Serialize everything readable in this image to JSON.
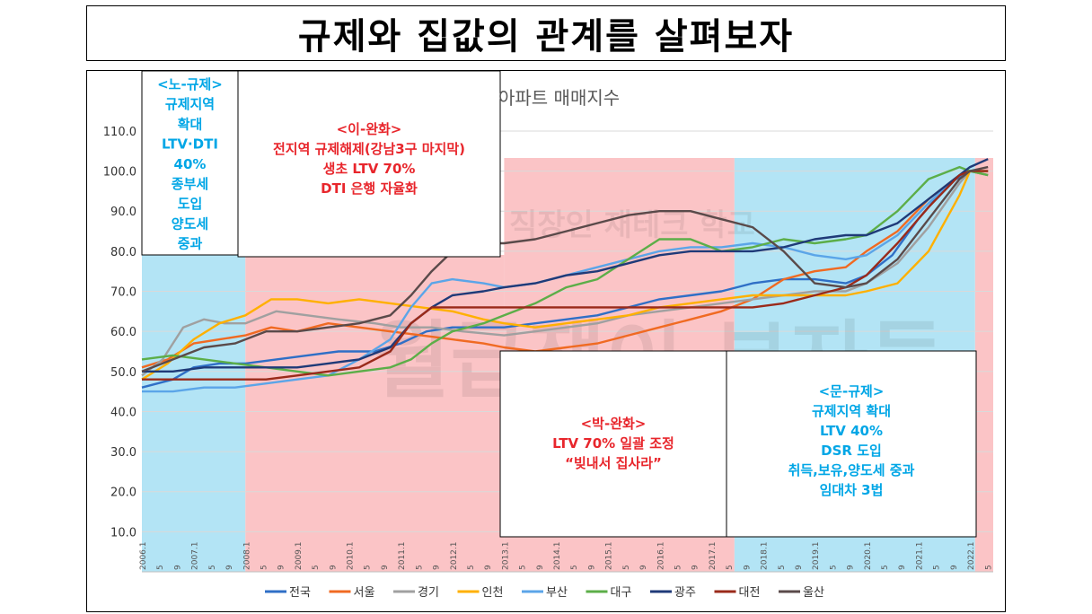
{
  "page_title": "규제와 집값의 관계를 살펴보자",
  "watermark": {
    "line1": "월급쟁이 부자들",
    "line2": "직장인 재테크 학교"
  },
  "colors": {
    "blue_bg": "#b3e4f5",
    "red_bg": "#fbc4c6",
    "blue_text": "#00a6e6",
    "red_text": "#e8262c"
  },
  "periods": [
    {
      "name": "노-규제",
      "color": "blue",
      "start": "2006.1",
      "end": "2007.12",
      "lines": [
        "<노-규제>",
        "규제지역",
        "확대",
        "LTV·DTI",
        "40%",
        "종부세",
        "도입",
        "양도세",
        "중과"
      ]
    },
    {
      "name": "이-완화",
      "color": "red",
      "start": "2008.1",
      "end": "2012.12",
      "lines": [
        "<이-완화>",
        "전지역 규제해제(강남3구 마지막)",
        "생초 LTV 70%",
        "DTI 은행 자율화"
      ]
    },
    {
      "name": "박-완화",
      "color": "red",
      "start": "2013.1",
      "end": "2017.5",
      "lines": [
        "<박-완화>",
        "LTV 70% 일괄 조정",
        "“빚내서 집사라”"
      ]
    },
    {
      "name": "문-규제",
      "color": "blue",
      "start": "2017.6",
      "end": "2022.4",
      "lines": [
        "<문-규제>",
        "규제지역 확대",
        "LTV 40%",
        "DSR 도입",
        "취득,보유,양도세 중과",
        "임대차 3법"
      ]
    }
  ],
  "chart_data": {
    "type": "line",
    "title": "아파트 매매지수",
    "y_ticks": [
      "10.0",
      "20.0",
      "30.0",
      "40.0",
      "50.0",
      "60.0",
      "70.0",
      "80.0",
      "90.0",
      "100.0",
      "110.0"
    ],
    "ylim": [
      10,
      110
    ],
    "x_axis_labels": [
      "2006.1",
      "5",
      "9",
      "2007.1",
      "5",
      "9",
      "2008.1",
      "5",
      "9",
      "2009.1",
      "5",
      "9",
      "2010.1",
      "5",
      "9",
      "2011.1",
      "5",
      "9",
      "2012.1",
      "5",
      "9",
      "2013.1",
      "5",
      "9",
      "2014.1",
      "5",
      "9",
      "2015.1",
      "5",
      "9",
      "2016.1",
      "5",
      "9",
      "2017.1",
      "5",
      "9",
      "2018.1",
      "5",
      "9",
      "2019.1",
      "5",
      "9",
      "2020.1",
      "5",
      "9",
      "2021.1",
      "5",
      "9",
      "2022.1",
      "5"
    ],
    "legend_position": "bottom",
    "series": [
      {
        "name": "전국",
        "color": "#2f6fc6",
        "points": [
          [
            2006.0,
            46
          ],
          [
            2006.6,
            48
          ],
          [
            2007.0,
            51
          ],
          [
            2007.5,
            52
          ],
          [
            2008.0,
            52
          ],
          [
            2008.6,
            53
          ],
          [
            2009.2,
            54
          ],
          [
            2009.8,
            55
          ],
          [
            2010.5,
            55
          ],
          [
            2011.0,
            57
          ],
          [
            2011.5,
            60
          ],
          [
            2012.0,
            61
          ],
          [
            2012.6,
            61
          ],
          [
            2013.0,
            61
          ],
          [
            2013.6,
            62
          ],
          [
            2014.2,
            63
          ],
          [
            2014.8,
            64
          ],
          [
            2015.4,
            66
          ],
          [
            2016.0,
            68
          ],
          [
            2016.6,
            69
          ],
          [
            2017.2,
            70
          ],
          [
            2017.8,
            72
          ],
          [
            2018.4,
            73
          ],
          [
            2019.0,
            73
          ],
          [
            2019.6,
            72
          ],
          [
            2020.0,
            74
          ],
          [
            2020.5,
            79
          ],
          [
            2021.0,
            88
          ],
          [
            2021.6,
            97
          ],
          [
            2022.0,
            100
          ],
          [
            2022.35,
            100
          ]
        ]
      },
      {
        "name": "서울",
        "color": "#f06a22",
        "points": [
          [
            2006.0,
            51
          ],
          [
            2006.5,
            53
          ],
          [
            2007.0,
            57
          ],
          [
            2007.5,
            58
          ],
          [
            2008.0,
            59
          ],
          [
            2008.5,
            61
          ],
          [
            2009.0,
            60
          ],
          [
            2009.6,
            62
          ],
          [
            2010.2,
            61
          ],
          [
            2010.8,
            60
          ],
          [
            2011.4,
            59
          ],
          [
            2012.0,
            58
          ],
          [
            2012.6,
            57
          ],
          [
            2013.0,
            56
          ],
          [
            2013.6,
            55
          ],
          [
            2014.2,
            56
          ],
          [
            2014.8,
            57
          ],
          [
            2015.4,
            59
          ],
          [
            2016.0,
            61
          ],
          [
            2016.6,
            63
          ],
          [
            2017.2,
            65
          ],
          [
            2017.8,
            68
          ],
          [
            2018.4,
            73
          ],
          [
            2019.0,
            75
          ],
          [
            2019.6,
            76
          ],
          [
            2020.0,
            80
          ],
          [
            2020.6,
            85
          ],
          [
            2021.2,
            93
          ],
          [
            2021.8,
            99
          ],
          [
            2022.0,
            100
          ],
          [
            2022.35,
            99
          ]
        ]
      },
      {
        "name": "경기",
        "color": "#a0a0a0",
        "points": [
          [
            2006.0,
            49
          ],
          [
            2006.4,
            53
          ],
          [
            2006.8,
            61
          ],
          [
            2007.2,
            63
          ],
          [
            2007.6,
            62
          ],
          [
            2008.0,
            62
          ],
          [
            2008.6,
            65
          ],
          [
            2009.2,
            64
          ],
          [
            2009.8,
            63
          ],
          [
            2010.5,
            62
          ],
          [
            2011.0,
            61
          ],
          [
            2011.6,
            61
          ],
          [
            2012.2,
            60
          ],
          [
            2013.0,
            59
          ],
          [
            2013.6,
            60
          ],
          [
            2014.2,
            61
          ],
          [
            2014.8,
            62
          ],
          [
            2015.4,
            64
          ],
          [
            2016.0,
            65
          ],
          [
            2016.6,
            66
          ],
          [
            2017.2,
            67
          ],
          [
            2017.8,
            68
          ],
          [
            2018.4,
            69
          ],
          [
            2019.0,
            70
          ],
          [
            2019.6,
            70
          ],
          [
            2020.0,
            72
          ],
          [
            2020.6,
            77
          ],
          [
            2021.2,
            86
          ],
          [
            2021.8,
            97
          ],
          [
            2022.0,
            100
          ],
          [
            2022.35,
            100
          ]
        ]
      },
      {
        "name": "인천",
        "color": "#ffb000",
        "points": [
          [
            2006.0,
            48
          ],
          [
            2006.5,
            52
          ],
          [
            2007.0,
            58
          ],
          [
            2007.5,
            62
          ],
          [
            2008.0,
            64
          ],
          [
            2008.5,
            68
          ],
          [
            2009.0,
            68
          ],
          [
            2009.6,
            67
          ],
          [
            2010.2,
            68
          ],
          [
            2010.8,
            67
          ],
          [
            2011.4,
            66
          ],
          [
            2012.0,
            65
          ],
          [
            2012.6,
            63
          ],
          [
            2013.0,
            62
          ],
          [
            2013.6,
            61
          ],
          [
            2014.2,
            62
          ],
          [
            2014.8,
            63
          ],
          [
            2015.4,
            64
          ],
          [
            2016.0,
            66
          ],
          [
            2016.6,
            67
          ],
          [
            2017.2,
            68
          ],
          [
            2017.8,
            69
          ],
          [
            2018.4,
            69
          ],
          [
            2019.0,
            69
          ],
          [
            2019.6,
            69
          ],
          [
            2020.0,
            70
          ],
          [
            2020.6,
            72
          ],
          [
            2021.2,
            80
          ],
          [
            2021.8,
            94
          ],
          [
            2022.0,
            100
          ],
          [
            2022.35,
            100
          ]
        ]
      },
      {
        "name": "부산",
        "color": "#5ba5e8",
        "points": [
          [
            2006.0,
            45
          ],
          [
            2006.6,
            45
          ],
          [
            2007.2,
            46
          ],
          [
            2007.8,
            46
          ],
          [
            2008.4,
            47
          ],
          [
            2009.0,
            48
          ],
          [
            2009.6,
            49
          ],
          [
            2010.2,
            53
          ],
          [
            2010.8,
            58
          ],
          [
            2011.2,
            66
          ],
          [
            2011.6,
            72
          ],
          [
            2012.0,
            73
          ],
          [
            2012.6,
            72
          ],
          [
            2013.0,
            71
          ],
          [
            2013.6,
            72
          ],
          [
            2014.2,
            74
          ],
          [
            2014.8,
            76
          ],
          [
            2015.4,
            78
          ],
          [
            2016.0,
            80
          ],
          [
            2016.6,
            81
          ],
          [
            2017.2,
            81
          ],
          [
            2017.8,
            82
          ],
          [
            2018.4,
            81
          ],
          [
            2019.0,
            79
          ],
          [
            2019.6,
            78
          ],
          [
            2020.0,
            79
          ],
          [
            2020.6,
            84
          ],
          [
            2021.2,
            92
          ],
          [
            2021.8,
            99
          ],
          [
            2022.0,
            100
          ],
          [
            2022.35,
            99
          ]
        ]
      },
      {
        "name": "대구",
        "color": "#5cae48",
        "points": [
          [
            2006.0,
            53
          ],
          [
            2006.6,
            54
          ],
          [
            2007.2,
            53
          ],
          [
            2007.8,
            52
          ],
          [
            2008.4,
            51
          ],
          [
            2009.0,
            50
          ],
          [
            2009.6,
            49
          ],
          [
            2010.2,
            50
          ],
          [
            2010.8,
            51
          ],
          [
            2011.2,
            53
          ],
          [
            2011.6,
            57
          ],
          [
            2012.0,
            60
          ],
          [
            2012.6,
            62
          ],
          [
            2013.0,
            64
          ],
          [
            2013.6,
            67
          ],
          [
            2014.2,
            71
          ],
          [
            2014.8,
            73
          ],
          [
            2015.4,
            78
          ],
          [
            2016.0,
            83
          ],
          [
            2016.6,
            83
          ],
          [
            2017.2,
            80
          ],
          [
            2017.8,
            81
          ],
          [
            2018.4,
            83
          ],
          [
            2019.0,
            82
          ],
          [
            2019.6,
            83
          ],
          [
            2020.0,
            84
          ],
          [
            2020.6,
            90
          ],
          [
            2021.2,
            98
          ],
          [
            2021.8,
            101
          ],
          [
            2022.0,
            100
          ],
          [
            2022.35,
            99
          ]
        ]
      },
      {
        "name": "광주",
        "color": "#1f3a78",
        "points": [
          [
            2006.0,
            50
          ],
          [
            2006.6,
            50
          ],
          [
            2007.2,
            51
          ],
          [
            2007.8,
            51
          ],
          [
            2008.4,
            51
          ],
          [
            2009.0,
            51
          ],
          [
            2009.6,
            52
          ],
          [
            2010.2,
            53
          ],
          [
            2010.8,
            56
          ],
          [
            2011.2,
            62
          ],
          [
            2011.6,
            66
          ],
          [
            2012.0,
            69
          ],
          [
            2012.6,
            70
          ],
          [
            2013.0,
            71
          ],
          [
            2013.6,
            72
          ],
          [
            2014.2,
            74
          ],
          [
            2014.8,
            75
          ],
          [
            2015.4,
            77
          ],
          [
            2016.0,
            79
          ],
          [
            2016.6,
            80
          ],
          [
            2017.2,
            80
          ],
          [
            2017.8,
            80
          ],
          [
            2018.4,
            81
          ],
          [
            2019.0,
            83
          ],
          [
            2019.6,
            84
          ],
          [
            2020.0,
            84
          ],
          [
            2020.6,
            87
          ],
          [
            2021.2,
            93
          ],
          [
            2021.8,
            99
          ],
          [
            2022.0,
            101
          ],
          [
            2022.35,
            103
          ]
        ]
      },
      {
        "name": "대전",
        "color": "#9a2a1a",
        "points": [
          [
            2006.0,
            48
          ],
          [
            2006.6,
            48
          ],
          [
            2007.2,
            48
          ],
          [
            2007.8,
            48
          ],
          [
            2008.4,
            48
          ],
          [
            2009.0,
            49
          ],
          [
            2009.6,
            50
          ],
          [
            2010.2,
            51
          ],
          [
            2010.8,
            55
          ],
          [
            2011.2,
            62
          ],
          [
            2011.6,
            66
          ],
          [
            2012.0,
            66
          ],
          [
            2012.6,
            66
          ],
          [
            2013.0,
            66
          ],
          [
            2013.6,
            66
          ],
          [
            2014.2,
            66
          ],
          [
            2014.8,
            66
          ],
          [
            2015.4,
            66
          ],
          [
            2016.0,
            66
          ],
          [
            2016.6,
            66
          ],
          [
            2017.2,
            66
          ],
          [
            2017.8,
            66
          ],
          [
            2018.4,
            67
          ],
          [
            2019.0,
            69
          ],
          [
            2019.6,
            71
          ],
          [
            2020.0,
            74
          ],
          [
            2020.6,
            82
          ],
          [
            2021.2,
            91
          ],
          [
            2021.8,
            99
          ],
          [
            2022.0,
            100
          ],
          [
            2022.35,
            100
          ]
        ]
      },
      {
        "name": "울산",
        "color": "#5a4a4a",
        "points": [
          [
            2006.0,
            50
          ],
          [
            2006.6,
            53
          ],
          [
            2007.2,
            56
          ],
          [
            2007.8,
            57
          ],
          [
            2008.4,
            60
          ],
          [
            2009.0,
            60
          ],
          [
            2009.6,
            61
          ],
          [
            2010.2,
            62
          ],
          [
            2010.8,
            64
          ],
          [
            2011.2,
            69
          ],
          [
            2011.6,
            75
          ],
          [
            2012.0,
            80
          ],
          [
            2012.6,
            82
          ],
          [
            2013.0,
            82
          ],
          [
            2013.6,
            83
          ],
          [
            2014.2,
            85
          ],
          [
            2014.8,
            87
          ],
          [
            2015.4,
            89
          ],
          [
            2016.0,
            90
          ],
          [
            2016.6,
            90
          ],
          [
            2017.2,
            88
          ],
          [
            2017.8,
            86
          ],
          [
            2018.4,
            80
          ],
          [
            2019.0,
            72
          ],
          [
            2019.6,
            71
          ],
          [
            2020.0,
            72
          ],
          [
            2020.6,
            78
          ],
          [
            2021.2,
            88
          ],
          [
            2021.8,
            98
          ],
          [
            2022.0,
            100
          ],
          [
            2022.35,
            101
          ]
        ]
      }
    ]
  }
}
